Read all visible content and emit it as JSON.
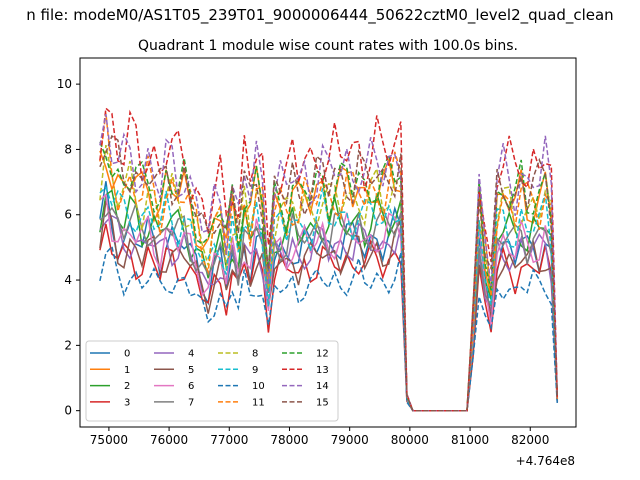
{
  "figure": {
    "suptitle": "n file: modeM0/AS1T05_239T01_9000006444_50622cztM0_level2_quad_clean",
    "offset_text": "+4.764e8"
  },
  "chart_data": {
    "type": "line",
    "title": "Quadrant 1 module wise count rates with 100.0s bins.",
    "xlabel": "",
    "ylabel": "",
    "x_offset": 476400000,
    "xlim": [
      74520,
      82760
    ],
    "ylim": [
      -0.5,
      10.8
    ],
    "x_ticks": [
      75000,
      76000,
      77000,
      78000,
      79000,
      80000,
      81000,
      82000
    ],
    "x_tick_labels": [
      "75000",
      "76000",
      "77000",
      "78000",
      "79000",
      "80000",
      "81000",
      "82000"
    ],
    "y_ticks": [
      0,
      2,
      4,
      6,
      8,
      10
    ],
    "y_tick_labels": [
      "0",
      "2",
      "4",
      "6",
      "8",
      "10"
    ],
    "grid": false,
    "legend_position": "lower-left",
    "legend_columns": 4,
    "x": [
      74850,
      74950,
      75050,
      75150,
      75250,
      75350,
      75450,
      75550,
      75650,
      75750,
      75850,
      75950,
      76050,
      76150,
      76250,
      76350,
      76450,
      76550,
      76650,
      76750,
      76850,
      76950,
      77050,
      77150,
      77250,
      77350,
      77450,
      77550,
      77650,
      77750,
      77850,
      77950,
      78050,
      78150,
      78250,
      78350,
      78450,
      78550,
      78650,
      78750,
      78850,
      78950,
      79050,
      79150,
      79250,
      79350,
      79450,
      79550,
      79650,
      79750,
      79850,
      79950,
      80050,
      80150,
      80250,
      80350,
      80450,
      80550,
      80650,
      80750,
      80850,
      80950,
      81050,
      81150,
      81250,
      81350,
      81450,
      81550,
      81650,
      81750,
      81850,
      81950,
      82050,
      82150,
      82250,
      82350,
      82450
    ],
    "active_profile": [
      1.0,
      1.12,
      1.03,
      0.95,
      0.93,
      0.97,
      0.94,
      0.9,
      0.96,
      0.92,
      0.85,
      0.94,
      0.93,
      0.9,
      0.92,
      0.86,
      0.8,
      0.72,
      0.66,
      0.78,
      0.83,
      0.69,
      0.86,
      0.74,
      0.92,
      0.81,
      0.94,
      0.87,
      0.56,
      0.86,
      0.88,
      0.84,
      0.91,
      0.85,
      0.9,
      0.88,
      0.92,
      0.95,
      0.89,
      0.93,
      0.91,
      0.94,
      0.92,
      0.96,
      0.9,
      0.93,
      0.95,
      0.91,
      0.94,
      0.97,
      1.0,
      0.06,
      0.0,
      0.0,
      0.0,
      0.0,
      0.0,
      0.0,
      0.0,
      0.0,
      0.0,
      0.0,
      0.38,
      0.88,
      0.66,
      0.52,
      0.86,
      0.9,
      0.88,
      0.84,
      0.92,
      0.86,
      0.9,
      0.88,
      0.94,
      0.82,
      0.05
    ],
    "series": [
      {
        "name": "0",
        "color": "#1f77b4",
        "dash": "solid",
        "base": 5.6
      },
      {
        "name": "1",
        "color": "#ff7f0e",
        "dash": "solid",
        "base": 7.3
      },
      {
        "name": "2",
        "color": "#2ca02c",
        "dash": "solid",
        "base": 6.2
      },
      {
        "name": "3",
        "color": "#d62728",
        "dash": "solid",
        "base": 4.9
      },
      {
        "name": "4",
        "color": "#9467bd",
        "dash": "solid",
        "base": 5.5
      },
      {
        "name": "5",
        "color": "#8c564b",
        "dash": "solid",
        "base": 5.2
      },
      {
        "name": "6",
        "color": "#e377c2",
        "dash": "solid",
        "base": 5.7
      },
      {
        "name": "7",
        "color": "#7f7f7f",
        "dash": "solid",
        "base": 6.0
      },
      {
        "name": "8",
        "color": "#bcbd22",
        "dash": "dashed",
        "base": 7.0
      },
      {
        "name": "9",
        "color": "#17becf",
        "dash": "dashed",
        "base": 6.4
      },
      {
        "name": "10",
        "color": "#1f77b4",
        "dash": "dashed",
        "base": 4.3
      },
      {
        "name": "11",
        "color": "#ff7f0e",
        "dash": "dashed",
        "base": 7.2
      },
      {
        "name": "12",
        "color": "#2ca02c",
        "dash": "dashed",
        "base": 7.5
      },
      {
        "name": "13",
        "color": "#d62728",
        "dash": "dashed",
        "base": 8.5
      },
      {
        "name": "14",
        "color": "#9467bd",
        "dash": "dashed",
        "base": 8.0
      },
      {
        "name": "15",
        "color": "#8c564b",
        "dash": "dashed",
        "base": 7.7
      }
    ]
  }
}
